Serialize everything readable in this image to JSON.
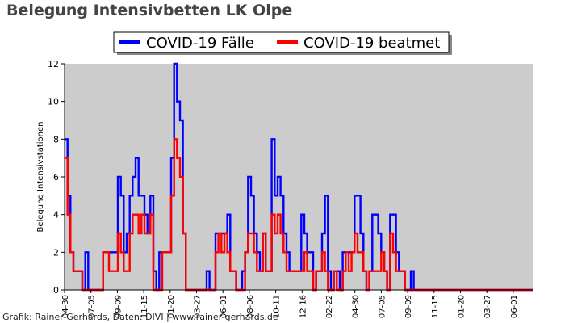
{
  "chart_data": {
    "type": "line",
    "title": "Belegung Intensivbetten LK Olpe",
    "xlabel": "",
    "ylabel": "Belegung Intensivstationen",
    "ylim": [
      0,
      12
    ],
    "yticks": [
      0,
      2,
      4,
      6,
      8,
      10,
      12
    ],
    "grid": false,
    "legend_position": "top-center",
    "background_color": "#cccccc",
    "x_tick_labels": [
      "04-30",
      "07-05",
      "09-09",
      "11-15",
      "01-20",
      "03-27",
      "06-01",
      "08-06",
      "10-11",
      "12-16",
      "02-22",
      "04-30",
      "07-05",
      "09-09",
      "11-15",
      "01-20",
      "03-27",
      "06-01"
    ],
    "x_start": "2020-04-30",
    "x_end": "2022-06-30",
    "sample_interval_days": 5,
    "series": [
      {
        "name": "COVID-19 Fälle",
        "color": "#0000ff",
        "values": [
          8,
          5,
          2,
          1,
          1,
          1,
          0,
          2,
          0,
          0,
          0,
          0,
          0,
          2,
          2,
          2,
          2,
          2,
          6,
          5,
          2,
          3,
          5,
          6,
          7,
          5,
          5,
          4,
          3,
          5,
          1,
          0,
          2,
          2,
          2,
          2,
          7,
          12,
          10,
          9,
          3,
          0,
          0,
          0,
          0,
          0,
          0,
          0,
          1,
          0,
          0,
          3,
          3,
          3,
          3,
          4,
          1,
          1,
          0,
          0,
          1,
          2,
          6,
          5,
          3,
          2,
          1,
          3,
          1,
          1,
          8,
          5,
          6,
          5,
          3,
          2,
          1,
          1,
          1,
          1,
          4,
          3,
          2,
          2,
          0,
          1,
          1,
          3,
          5,
          1,
          0,
          1,
          1,
          0,
          2,
          2,
          2,
          2,
          5,
          5,
          3,
          1,
          0,
          1,
          4,
          4,
          3,
          2,
          1,
          0,
          4,
          4,
          2,
          1,
          1,
          0,
          0,
          1,
          0,
          0,
          0,
          0,
          0,
          0,
          0,
          0,
          0,
          0,
          0,
          0,
          0,
          0,
          0,
          0,
          0,
          0,
          0,
          0,
          0,
          0
        ]
      },
      {
        "name": "COVID-19 beatmet",
        "color": "#ff0000",
        "values": [
          7,
          4,
          2,
          1,
          1,
          1,
          0,
          0,
          0,
          0,
          0,
          0,
          0,
          2,
          2,
          1,
          1,
          1,
          3,
          2,
          1,
          1,
          3,
          4,
          4,
          3,
          4,
          3,
          3,
          4,
          0,
          0,
          0,
          2,
          2,
          2,
          5,
          8,
          7,
          6,
          3,
          0,
          0,
          0,
          0,
          0,
          0,
          0,
          0,
          0,
          0,
          2,
          3,
          2,
          3,
          2,
          1,
          1,
          0,
          0,
          0,
          2,
          3,
          3,
          2,
          1,
          1,
          3,
          1,
          1,
          4,
          3,
          4,
          3,
          2,
          1,
          1,
          1,
          1,
          1,
          1,
          2,
          1,
          1,
          0,
          1,
          1,
          2,
          1,
          0,
          0,
          1,
          0,
          0,
          1,
          2,
          1,
          2,
          3,
          2,
          2,
          1,
          0,
          1,
          1,
          1,
          1,
          2,
          1,
          0,
          3,
          2,
          1,
          1,
          1,
          0,
          0,
          0,
          0,
          0,
          0,
          0,
          0,
          0,
          0,
          0,
          0,
          0,
          0,
          0,
          0,
          0,
          0,
          0,
          0,
          0,
          0,
          0,
          0,
          0
        ]
      }
    ]
  },
  "credit": "Grafik: Rainer Gerhards, Daten: DIVI | www.rainer-gerhards.de"
}
